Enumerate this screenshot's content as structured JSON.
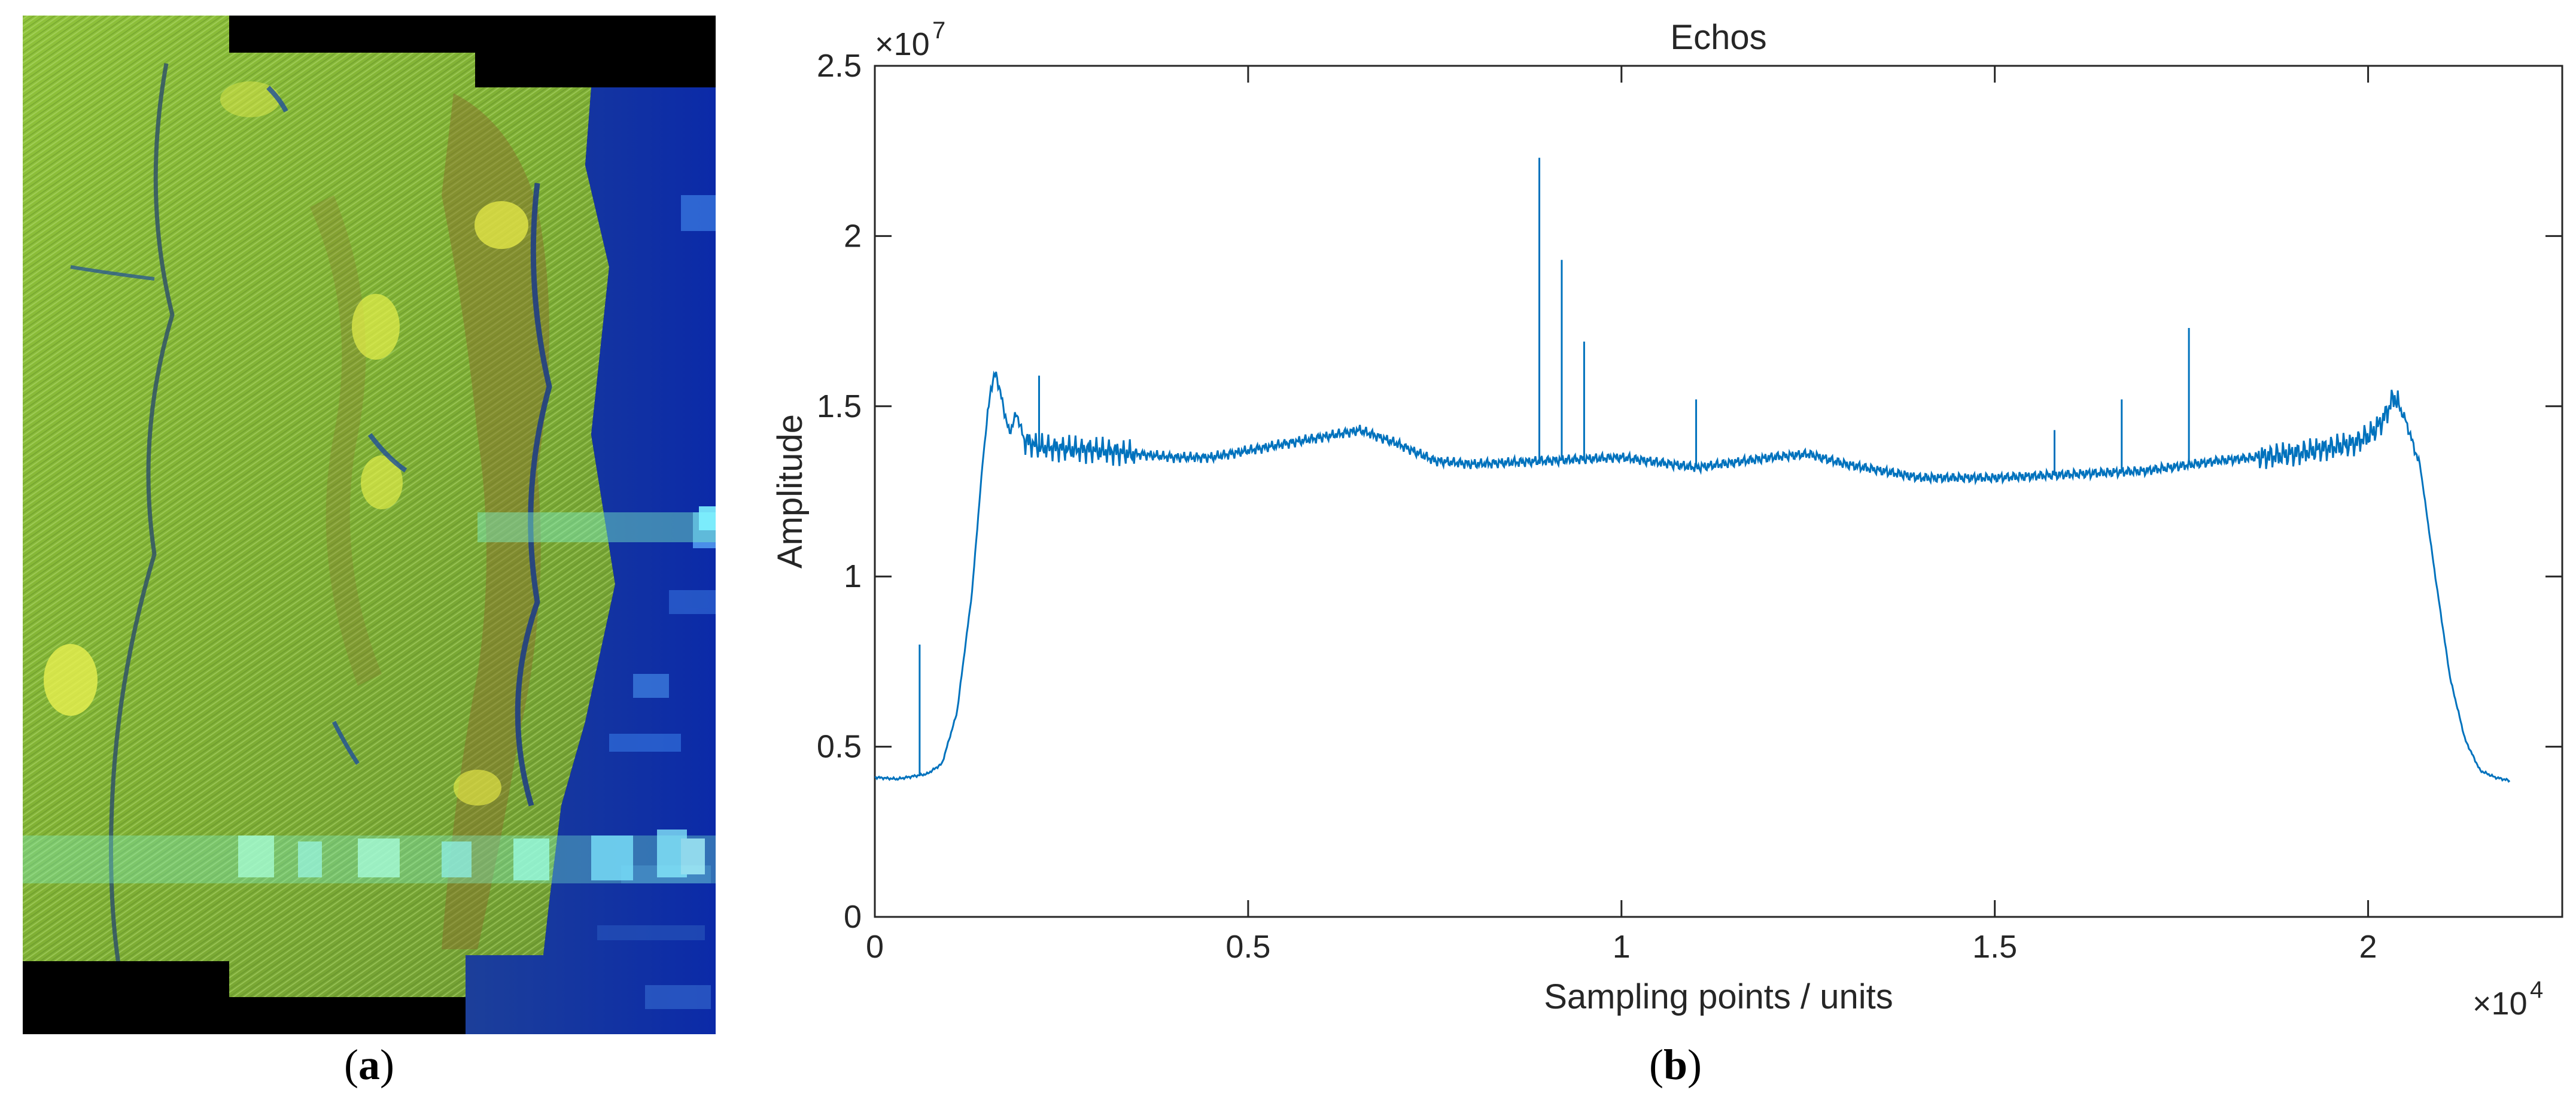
{
  "panels": {
    "left_label": "a",
    "right_label": "b"
  },
  "sar_image": {
    "description_name": "SAR image"
  },
  "chart_data": {
    "type": "line",
    "title": "Echos",
    "xlabel": "Sampling points / units",
    "ylabel": "Amplitude",
    "x_exponent": "×10",
    "x_exponent_power": "4",
    "y_exponent": "×10",
    "y_exponent_power": "7",
    "xlim": [
      0,
      22600
    ],
    "ylim": [
      0,
      25000000
    ],
    "xticks": [
      0,
      5000,
      10000,
      15000,
      20000
    ],
    "xtick_labels": [
      "0",
      "0.5",
      "1",
      "1.5",
      "2"
    ],
    "yticks": [
      0,
      5000000,
      10000000,
      15000000,
      20000000,
      25000000
    ],
    "ytick_labels": [
      "0",
      "0.5",
      "1",
      "1.5",
      "2",
      "2.5"
    ],
    "line_color": "#0072BD",
    "series": [
      {
        "name": "Echos",
        "envelope": [
          [
            0,
            4100000
          ],
          [
            300,
            4050000
          ],
          [
            700,
            4200000
          ],
          [
            900,
            4500000
          ],
          [
            1100,
            6000000
          ],
          [
            1300,
            9500000
          ],
          [
            1450,
            13500000
          ],
          [
            1550,
            15500000
          ],
          [
            1620,
            16000000
          ],
          [
            1700,
            15200000
          ],
          [
            1800,
            14200000
          ],
          [
            1900,
            14800000
          ],
          [
            2000,
            14000000
          ],
          [
            2200,
            13800000
          ],
          [
            3000,
            13700000
          ],
          [
            4000,
            13500000
          ],
          [
            4500,
            13500000
          ],
          [
            5000,
            13700000
          ],
          [
            5500,
            13900000
          ],
          [
            6000,
            14100000
          ],
          [
            6500,
            14300000
          ],
          [
            7000,
            13900000
          ],
          [
            7500,
            13400000
          ],
          [
            8000,
            13300000
          ],
          [
            9000,
            13400000
          ],
          [
            10000,
            13500000
          ],
          [
            11000,
            13200000
          ],
          [
            12000,
            13500000
          ],
          [
            12500,
            13600000
          ],
          [
            13000,
            13300000
          ],
          [
            14000,
            12900000
          ],
          [
            15000,
            12900000
          ],
          [
            16000,
            13000000
          ],
          [
            17000,
            13100000
          ],
          [
            18000,
            13400000
          ],
          [
            19000,
            13600000
          ],
          [
            19800,
            13900000
          ],
          [
            20050,
            14200000
          ],
          [
            20200,
            14600000
          ],
          [
            20350,
            15300000
          ],
          [
            20500,
            14600000
          ],
          [
            20700,
            13200000
          ],
          [
            20900,
            10000000
          ],
          [
            21100,
            7000000
          ],
          [
            21300,
            5200000
          ],
          [
            21500,
            4300000
          ],
          [
            21700,
            4100000
          ],
          [
            21900,
            4000000
          ]
        ],
        "spikes": [
          [
            600,
            8000000
          ],
          [
            2200,
            15900000
          ],
          [
            8900,
            22300000
          ],
          [
            9200,
            19300000
          ],
          [
            9500,
            16900000
          ],
          [
            11000,
            15200000
          ],
          [
            15800,
            14300000
          ],
          [
            16700,
            15200000
          ],
          [
            17600,
            17300000
          ]
        ]
      }
    ]
  }
}
